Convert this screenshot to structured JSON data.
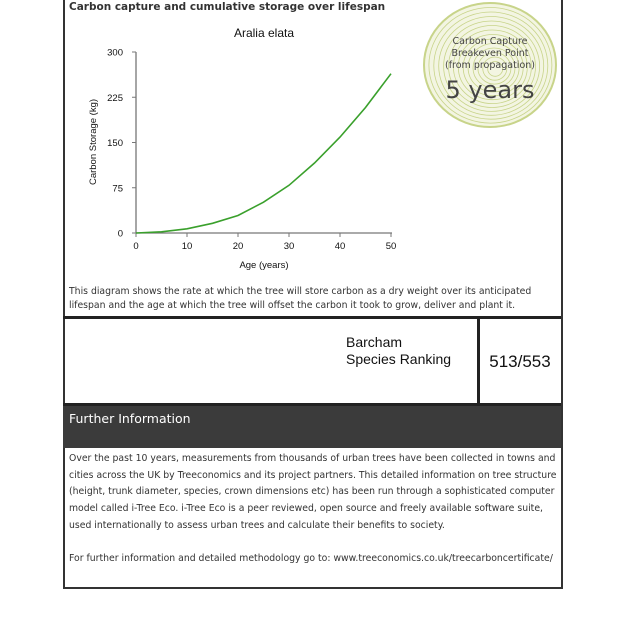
{
  "section_title": "Carbon capture and cumulative storage over lifespan",
  "badge": {
    "line1": "Carbon Capture",
    "line2": "Breakeven Point",
    "line3": "(from propagation)",
    "value": "5 years",
    "color": "#c8d48a"
  },
  "chart_data": {
    "type": "line",
    "title": "Aralia elata",
    "xlabel": "Age (years)",
    "ylabel": "Carbon Storage (kg)",
    "xlim": [
      0,
      50
    ],
    "ylim": [
      0,
      300
    ],
    "xticks": [
      "0",
      "10",
      "20",
      "30",
      "40",
      "50"
    ],
    "yticks": [
      "0",
      "75",
      "150",
      "225",
      "300"
    ],
    "x": [
      0,
      5,
      10,
      15,
      20,
      25,
      30,
      35,
      40,
      45,
      50
    ],
    "values": [
      0,
      2,
      7,
      16,
      29,
      51,
      79,
      116,
      159,
      208,
      264
    ],
    "color": "#3aa02c",
    "grid": false
  },
  "description": "This diagram shows the rate at which the tree will store carbon as a dry weight over its anticipated lifespan and the age at which the tree will offset the carbon it took to grow, deliver and plant it.",
  "ranking": {
    "label1": "Barcham",
    "label2": "Species Ranking",
    "value": "513/553"
  },
  "further": {
    "heading": "Further Information",
    "para1": "Over the past 10 years, measurements from thousands of urban trees have been collected in towns and cities across the UK by Treeconomics and its project partners. This detailed information on tree structure (height, trunk diameter, species, crown dimensions etc) has been run through a sophisticated computer model called i-Tree Eco. i-Tree Eco is a peer reviewed, open source and freely available software suite, used internationally to assess urban trees and calculate their benefits to society.",
    "para2": "For further information and detailed methodology go to: www.treeconomics.co.uk/treecarboncertificate/"
  }
}
